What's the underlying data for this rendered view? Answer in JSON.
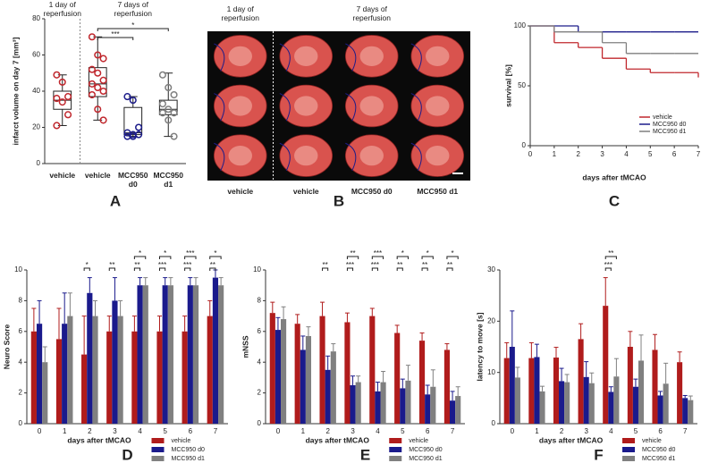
{
  "chart_data": [
    {
      "type": "box",
      "panel": "A",
      "ylabel": "infarct volume on day 7 [mm³]",
      "ylim": [
        0,
        80
      ],
      "yticks": [
        0,
        20,
        40,
        60,
        80
      ],
      "categories": [
        "vehicle",
        "vehicle",
        "MCC950 d0",
        "MCC950 d1"
      ],
      "colors": [
        "#c0272d",
        "#c0272d",
        "#1c1c8a",
        "#7f7f7f"
      ],
      "groups": [
        {
          "label": "1 day of reperfusion",
          "from": 0,
          "to": 0
        },
        {
          "label": "7 days of reperfusion",
          "from": 1,
          "to": 3
        }
      ],
      "boxes": [
        [
          21,
          30,
          35,
          40,
          49
        ],
        [
          24,
          37,
          44,
          53,
          70
        ],
        [
          15,
          16,
          17,
          31,
          37
        ],
        [
          15,
          27,
          30,
          35,
          50
        ]
      ],
      "points": [
        [
          49,
          45,
          37,
          36,
          34,
          27,
          21
        ],
        [
          70,
          60,
          58,
          52,
          50,
          46,
          44,
          42,
          40,
          38,
          30,
          24
        ],
        [
          37,
          35,
          20,
          17,
          16,
          16,
          15,
          15
        ],
        [
          49,
          42,
          38,
          33,
          30,
          28,
          28,
          24,
          15
        ]
      ],
      "annotations": [
        {
          "label": "***",
          "from": 1,
          "to": 2
        },
        {
          "label": "*",
          "from": 1,
          "to": 3
        }
      ]
    },
    {
      "type": "image",
      "panel": "B",
      "categories": [
        "vehicle",
        "vehicle",
        "MCC950 d0",
        "MCC950 d1"
      ],
      "groups": [
        {
          "label": "1 day of reperfusion",
          "from": 0,
          "to": 0
        },
        {
          "label": "7 days of reperfusion",
          "from": 1,
          "to": 3
        }
      ]
    },
    {
      "type": "step",
      "panel": "C",
      "xlabel": "days after tMCAO",
      "ylabel": "survival [%]",
      "xlim": [
        0,
        7
      ],
      "xticks": [
        0,
        1,
        2,
        3,
        4,
        5,
        6,
        7
      ],
      "ylim": [
        0,
        100
      ],
      "yticks": [
        0,
        50,
        100
      ],
      "legend": "lower right",
      "x": [
        0,
        1,
        2,
        3,
        4,
        5,
        6,
        7
      ],
      "series": [
        {
          "name": "vehicle",
          "color": "#c0272d",
          "values": [
            100,
            86,
            82,
            73,
            64,
            61,
            61,
            57
          ]
        },
        {
          "name": "MCC950 d0",
          "color": "#1c1c8a",
          "values": [
            100,
            100,
            95,
            95,
            95,
            95,
            95,
            95
          ]
        },
        {
          "name": "MCC950 d1",
          "color": "#7f7f7f",
          "values": [
            100,
            95,
            95,
            86,
            77,
            77,
            77,
            77
          ]
        }
      ]
    },
    {
      "type": "bar",
      "panel": "D",
      "xlabel": "days after tMCAO",
      "ylabel": "Neuro Score",
      "ylim": [
        0,
        10
      ],
      "yticks": [
        0,
        2,
        4,
        6,
        8,
        10
      ],
      "legend": "below right",
      "categories": [
        "0",
        "1",
        "2",
        "3",
        "4",
        "5",
        "6",
        "7"
      ],
      "series": [
        {
          "name": "vehicle",
          "color": "#b01c1c",
          "values": [
            6,
            5.5,
            4.5,
            6,
            6,
            6,
            6,
            7
          ],
          "errors": [
            1.5,
            2,
            2.5,
            1,
            1,
            1,
            1,
            1
          ]
        },
        {
          "name": "MCC950 d0",
          "color": "#1a1a8c",
          "values": [
            6.5,
            6.5,
            8.5,
            8,
            9,
            9,
            9,
            9.5
          ],
          "errors": [
            1.5,
            2,
            1,
            1.5,
            0.5,
            0.5,
            0.5,
            0.5
          ]
        },
        {
          "name": "MCC950 d1",
          "color": "#808080",
          "values": [
            4,
            7,
            7,
            7,
            9,
            9,
            9,
            9
          ],
          "errors": [
            1,
            1.5,
            1,
            1,
            0.5,
            0.5,
            0.5,
            0.5
          ]
        }
      ],
      "annotations": [
        {
          "category": "2",
          "level": 1,
          "label": "*"
        },
        {
          "category": "3",
          "level": 1,
          "label": "**"
        },
        {
          "category": "4",
          "level": 1,
          "label": "**"
        },
        {
          "category": "5",
          "level": 1,
          "label": "***"
        },
        {
          "category": "6",
          "level": 1,
          "label": "***"
        },
        {
          "category": "7",
          "level": 1,
          "label": "**"
        },
        {
          "category": "4",
          "level": 2,
          "label": "*"
        },
        {
          "category": "5",
          "level": 2,
          "label": "*"
        },
        {
          "category": "6",
          "level": 2,
          "label": "***"
        },
        {
          "category": "7",
          "level": 2,
          "label": "*"
        }
      ]
    },
    {
      "type": "bar",
      "panel": "E",
      "xlabel": "days after tMCAO",
      "ylabel": "mNSS",
      "ylim": [
        0,
        10
      ],
      "yticks": [
        0,
        2,
        4,
        6,
        8,
        10
      ],
      "legend": "below right",
      "categories": [
        "0",
        "1",
        "2",
        "3",
        "4",
        "5",
        "6",
        "7"
      ],
      "series": [
        {
          "name": "vehicle",
          "color": "#b01c1c",
          "values": [
            7.2,
            6.5,
            7,
            6.6,
            7,
            5.9,
            5.4,
            4.8
          ],
          "errors": [
            0.7,
            0.6,
            0.9,
            0.6,
            0.5,
            0.5,
            0.5,
            0.4
          ]
        },
        {
          "name": "MCC950 d0",
          "color": "#1a1a8c",
          "values": [
            6.1,
            4.8,
            3.5,
            2.5,
            2.1,
            2.3,
            1.9,
            1.5
          ],
          "errors": [
            0.8,
            0.9,
            0.9,
            0.6,
            0.6,
            0.6,
            0.6,
            0.6
          ]
        },
        {
          "name": "MCC950 d1",
          "color": "#808080",
          "values": [
            6.8,
            5.7,
            4.7,
            2.7,
            2.7,
            2.8,
            2.4,
            1.8
          ],
          "errors": [
            0.8,
            0.6,
            0.5,
            0.4,
            0.7,
            1,
            1.1,
            0.6
          ]
        }
      ],
      "annotations": [
        {
          "category": "2",
          "level": 1,
          "label": "**"
        },
        {
          "category": "3",
          "level": 1,
          "label": "***"
        },
        {
          "category": "4",
          "level": 1,
          "label": "***"
        },
        {
          "category": "5",
          "level": 1,
          "label": "**"
        },
        {
          "category": "6",
          "level": 1,
          "label": "**"
        },
        {
          "category": "7",
          "level": 1,
          "label": "**"
        },
        {
          "category": "3",
          "level": 2,
          "label": "**"
        },
        {
          "category": "4",
          "level": 2,
          "label": "***"
        },
        {
          "category": "5",
          "level": 2,
          "label": "*"
        },
        {
          "category": "6",
          "level": 2,
          "label": "*"
        },
        {
          "category": "7",
          "level": 2,
          "label": "*"
        }
      ]
    },
    {
      "type": "bar",
      "panel": "F",
      "xlabel": "days after tMCAO",
      "ylabel": "latency to move [s]",
      "ylim": [
        0,
        30
      ],
      "yticks": [
        0,
        10,
        20,
        30
      ],
      "legend": "below right",
      "categories": [
        "0",
        "1",
        "2",
        "3",
        "4",
        "5",
        "6",
        "7"
      ],
      "series": [
        {
          "name": "vehicle",
          "color": "#b01c1c",
          "values": [
            12.8,
            12.8,
            12.9,
            16.5,
            23,
            15,
            14.4,
            12
          ],
          "errors": [
            3,
            3,
            2,
            3,
            5.5,
            3,
            3,
            2
          ]
        },
        {
          "name": "MCC950 d0",
          "color": "#1a1a8c",
          "values": [
            15,
            13,
            8.3,
            9.1,
            6.2,
            7.2,
            5.5,
            5
          ],
          "errors": [
            7,
            2.5,
            2.5,
            3,
            1,
            1.5,
            0.8,
            0.5
          ]
        },
        {
          "name": "MCC950 d1",
          "color": "#808080",
          "values": [
            9,
            6.3,
            8.1,
            7.9,
            9.2,
            12.3,
            7.8,
            4.6
          ],
          "errors": [
            2,
            1,
            1.5,
            2,
            3.5,
            5,
            4,
            0.8
          ]
        }
      ],
      "annotations": [
        {
          "category": "4",
          "level": 1,
          "label": "***"
        },
        {
          "category": "4",
          "level": 2,
          "label": "**"
        }
      ]
    }
  ]
}
